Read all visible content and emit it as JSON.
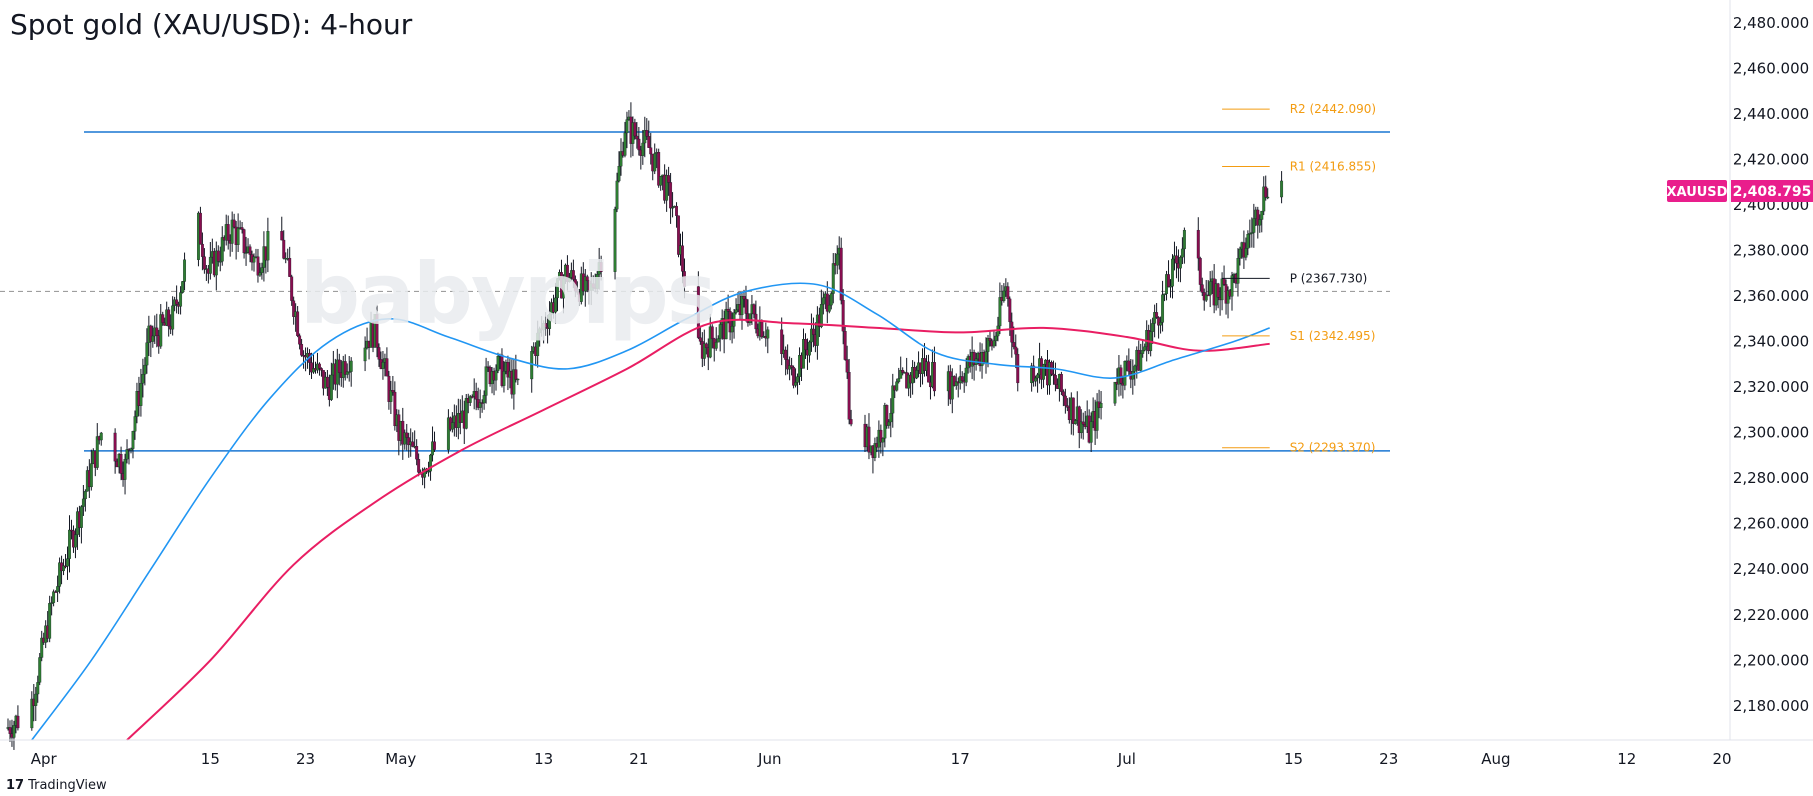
{
  "title": "Spot gold (XAU/USD): 4-hour",
  "watermark": "babypips",
  "branding": "TradingView",
  "branding_icon": "tradingview-logo-icon",
  "colors": {
    "bull": "#26a69a",
    "candle_body_bull": "#2e7d32",
    "bear": "#880e4f",
    "ema_fast": "#2196f3",
    "ema_slow": "#e91e63",
    "resistance_line": "#1976d2",
    "pivot_levels": "#f39c12",
    "price_badge": "#e91e8c"
  },
  "chart_data": {
    "type": "candlestick",
    "symbol": "XAUUSD",
    "timeframe": "4-hour",
    "last_price": "2,408.795",
    "ylim": [
      2165,
      2490
    ],
    "xlim": [
      "2024-03-29",
      "2024-08-20"
    ],
    "y_ticks": [
      "2,180.000",
      "2,200.000",
      "2,220.000",
      "2,240.000",
      "2,260.000",
      "2,280.000",
      "2,300.000",
      "2,320.000",
      "2,340.000",
      "2,360.000",
      "2,380.000",
      "2,400.000",
      "2,420.000",
      "2,440.000",
      "2,460.000",
      "2,480.000"
    ],
    "y_tick_values": [
      2180,
      2200,
      2220,
      2240,
      2260,
      2280,
      2300,
      2320,
      2340,
      2360,
      2380,
      2400,
      2420,
      2440,
      2460,
      2480
    ],
    "x_ticks": [
      {
        "label": "Apr",
        "date": "2024-04-01"
      },
      {
        "label": "15",
        "date": "2024-04-15"
      },
      {
        "label": "23",
        "date": "2024-04-23"
      },
      {
        "label": "May",
        "date": "2024-05-01"
      },
      {
        "label": "13",
        "date": "2024-05-13"
      },
      {
        "label": "21",
        "date": "2024-05-21"
      },
      {
        "label": "Jun",
        "date": "2024-06-01"
      },
      {
        "label": "17",
        "date": "2024-06-17"
      },
      {
        "label": "Jul",
        "date": "2024-07-01"
      },
      {
        "label": "15",
        "date": "2024-07-15"
      },
      {
        "label": "23",
        "date": "2024-07-23"
      },
      {
        "label": "Aug",
        "date": "2024-08-01"
      },
      {
        "label": "12",
        "date": "2024-08-12"
      },
      {
        "label": "20",
        "date": "2024-08-20"
      }
    ],
    "horizontal_levels": [
      {
        "name": "resistance",
        "value": 2432
      },
      {
        "name": "support",
        "value": 2292
      },
      {
        "name": "midline",
        "value": 2362,
        "style": "dashed"
      }
    ],
    "pivot_points": [
      {
        "label": "R2 (2442.090)",
        "value": 2442.09
      },
      {
        "label": "R1 (2416.855)",
        "value": 2416.855
      },
      {
        "label": "P (2367.730)",
        "value": 2367.73
      },
      {
        "label": "S1 (2342.495)",
        "value": 2342.495
      },
      {
        "label": "S2 (2293.370)",
        "value": 2293.37
      }
    ],
    "pivot_range": [
      "2024-07-09",
      "2024-07-13"
    ],
    "price_path": [
      [
        "2024-03-29",
        2170
      ],
      [
        "2024-03-31",
        2178
      ],
      [
        "2024-04-02",
        2228
      ],
      [
        "2024-04-04",
        2262
      ],
      [
        "2024-04-06",
        2300
      ],
      [
        "2024-04-08",
        2285
      ],
      [
        "2024-04-10",
        2340
      ],
      [
        "2024-04-12",
        2350
      ],
      [
        "2024-04-14",
        2395
      ],
      [
        "2024-04-15",
        2370
      ],
      [
        "2024-04-17",
        2390
      ],
      [
        "2024-04-19",
        2375
      ],
      [
        "2024-04-21",
        2388
      ],
      [
        "2024-04-23",
        2335
      ],
      [
        "2024-04-25",
        2320
      ],
      [
        "2024-04-27",
        2335
      ],
      [
        "2024-04-29",
        2345
      ],
      [
        "2024-05-01",
        2300
      ],
      [
        "2024-05-03",
        2285
      ],
      [
        "2024-05-05",
        2300
      ],
      [
        "2024-05-07",
        2310
      ],
      [
        "2024-05-09",
        2330
      ],
      [
        "2024-05-11",
        2320
      ],
      [
        "2024-05-13",
        2345
      ],
      [
        "2024-05-15",
        2370
      ],
      [
        "2024-05-17",
        2360
      ],
      [
        "2024-05-19",
        2395
      ],
      [
        "2024-05-20",
        2435
      ],
      [
        "2024-05-22",
        2425
      ],
      [
        "2024-05-24",
        2400
      ],
      [
        "2024-05-26",
        2335
      ],
      [
        "2024-05-28",
        2345
      ],
      [
        "2024-05-30",
        2355
      ],
      [
        "2024-06-01",
        2345
      ],
      [
        "2024-06-03",
        2325
      ],
      [
        "2024-06-05",
        2345
      ],
      [
        "2024-06-07",
        2375
      ],
      [
        "2024-06-08",
        2300
      ],
      [
        "2024-06-10",
        2295
      ],
      [
        "2024-06-12",
        2320
      ],
      [
        "2024-06-14",
        2330
      ],
      [
        "2024-06-16",
        2320
      ],
      [
        "2024-06-18",
        2330
      ],
      [
        "2024-06-20",
        2340
      ],
      [
        "2024-06-21",
        2365
      ],
      [
        "2024-06-22",
        2325
      ],
      [
        "2024-06-24",
        2330
      ],
      [
        "2024-06-26",
        2315
      ],
      [
        "2024-06-28",
        2300
      ],
      [
        "2024-06-30",
        2325
      ],
      [
        "2024-07-02",
        2330
      ],
      [
        "2024-07-04",
        2355
      ],
      [
        "2024-07-06",
        2385
      ],
      [
        "2024-07-08",
        2360
      ],
      [
        "2024-07-10",
        2365
      ],
      [
        "2024-07-12",
        2395
      ],
      [
        "2024-07-13",
        2410
      ],
      [
        "2024-07-14",
        2409
      ]
    ],
    "ema_fast_path": [
      [
        "2024-03-31",
        2165
      ],
      [
        "2024-04-05",
        2200
      ],
      [
        "2024-04-10",
        2240
      ],
      [
        "2024-04-15",
        2280
      ],
      [
        "2024-04-20",
        2315
      ],
      [
        "2024-04-25",
        2340
      ],
      [
        "2024-04-30",
        2350
      ],
      [
        "2024-05-05",
        2342
      ],
      [
        "2024-05-10",
        2333
      ],
      [
        "2024-05-15",
        2328
      ],
      [
        "2024-05-20",
        2336
      ],
      [
        "2024-05-25",
        2350
      ],
      [
        "2024-05-30",
        2362
      ],
      [
        "2024-06-05",
        2365
      ],
      [
        "2024-06-10",
        2352
      ],
      [
        "2024-06-15",
        2335
      ],
      [
        "2024-06-20",
        2330
      ],
      [
        "2024-06-25",
        2328
      ],
      [
        "2024-06-30",
        2324
      ],
      [
        "2024-07-05",
        2332
      ],
      [
        "2024-07-10",
        2340
      ],
      [
        "2024-07-13",
        2346
      ]
    ],
    "ema_slow_path": [
      [
        "2024-04-08",
        2165
      ],
      [
        "2024-04-15",
        2200
      ],
      [
        "2024-04-22",
        2242
      ],
      [
        "2024-04-29",
        2270
      ],
      [
        "2024-05-06",
        2292
      ],
      [
        "2024-05-13",
        2310
      ],
      [
        "2024-05-20",
        2328
      ],
      [
        "2024-05-27",
        2348
      ],
      [
        "2024-06-03",
        2348
      ],
      [
        "2024-06-10",
        2346
      ],
      [
        "2024-06-17",
        2344
      ],
      [
        "2024-06-24",
        2346
      ],
      [
        "2024-07-01",
        2342
      ],
      [
        "2024-07-07",
        2336
      ],
      [
        "2024-07-13",
        2339
      ]
    ]
  }
}
